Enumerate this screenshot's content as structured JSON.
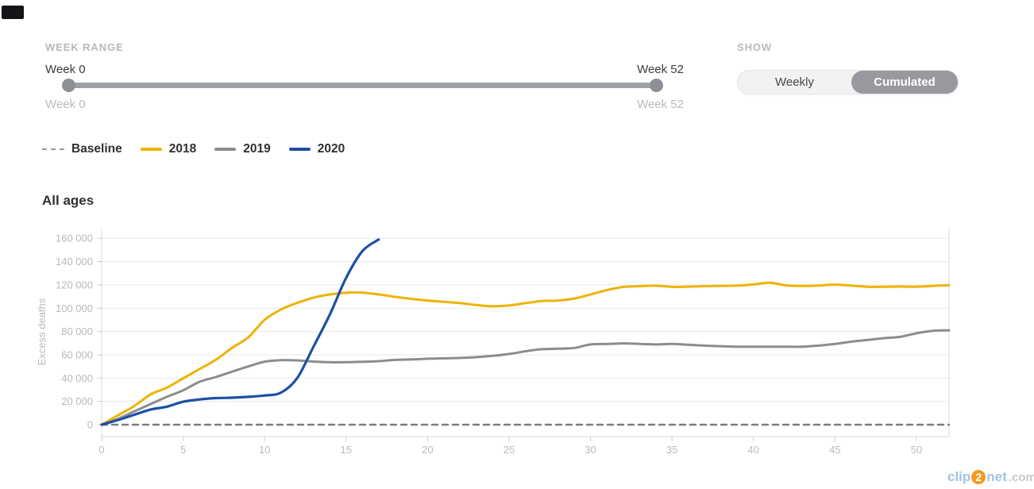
{
  "week_range": {
    "label": "WEEK RANGE",
    "start_label_top": "Week 0",
    "end_label_top": "Week 52",
    "start_label_bottom": "Week 0",
    "end_label_bottom": "Week 52",
    "slider_min": 0,
    "slider_max": 52
  },
  "show": {
    "label": "SHOW",
    "options": [
      {
        "label": "Weekly",
        "selected": false
      },
      {
        "label": "Cumulated",
        "selected": true
      }
    ]
  },
  "legend": [
    {
      "label": "Baseline",
      "style": "dashed",
      "color": "#97999b"
    },
    {
      "label": "2018",
      "style": "solid",
      "color": "#efb302"
    },
    {
      "label": "2019",
      "style": "solid",
      "color": "#8a8d90"
    },
    {
      "label": "2020",
      "style": "solid",
      "color": "#1e4fa5"
    }
  ],
  "chart_title": "All ages",
  "watermark": {
    "clip": "clip",
    "two": "2",
    "net": "net",
    "dotcom": ".com"
  },
  "chart_data": {
    "type": "line",
    "title": "All ages",
    "xlabel": "",
    "ylabel": "Excess deaths",
    "xlim": [
      0,
      52
    ],
    "ylim": [
      0,
      168000
    ],
    "grid": true,
    "legend_position": "top-left",
    "x_ticks": [
      0,
      5,
      10,
      15,
      20,
      25,
      30,
      35,
      40,
      45,
      50
    ],
    "y_ticks": [
      [
        0,
        "0"
      ],
      [
        20000,
        "20 000"
      ],
      [
        40000,
        "40 000"
      ],
      [
        60000,
        "60 000"
      ],
      [
        80000,
        "80 000"
      ],
      [
        100000,
        "100 000"
      ],
      [
        120000,
        "120 000"
      ],
      [
        140000,
        "140 000"
      ],
      [
        160000,
        "160 000"
      ]
    ],
    "series": [
      {
        "name": "Baseline",
        "color": "#7a7c7f",
        "dash": "7 6",
        "width": 2.5,
        "x": [
          0,
          52
        ],
        "values": [
          0,
          0
        ]
      },
      {
        "name": "2018",
        "color": "#efb302",
        "dash": null,
        "width": 3,
        "x": [
          0,
          1,
          2,
          3,
          4,
          5,
          6,
          7,
          8,
          9,
          10,
          11,
          12,
          13,
          14,
          15,
          16,
          17,
          18,
          19,
          20,
          21,
          22,
          23,
          24,
          25,
          26,
          27,
          28,
          29,
          30,
          31,
          32,
          33,
          34,
          35,
          36,
          37,
          38,
          39,
          40,
          41,
          42,
          43,
          44,
          45,
          46,
          47,
          48,
          49,
          50,
          51,
          52
        ],
        "values": [
          0,
          8000,
          16000,
          26000,
          31800,
          39800,
          47700,
          55700,
          65900,
          75000,
          90000,
          98900,
          104500,
          109100,
          111800,
          113300,
          113400,
          111800,
          109800,
          108000,
          106600,
          105500,
          104400,
          102700,
          101700,
          102400,
          104300,
          106200,
          106600,
          108300,
          111800,
          115500,
          118200,
          118900,
          119300,
          118300,
          118500,
          118900,
          119200,
          119400,
          120400,
          121900,
          119600,
          119100,
          119400,
          120300,
          119400,
          118400,
          118400,
          118600,
          118400,
          119200,
          119800
        ]
      },
      {
        "name": "2019",
        "color": "#8a8d90",
        "dash": null,
        "width": 3,
        "x": [
          0,
          1,
          2,
          3,
          4,
          5,
          6,
          7,
          8,
          9,
          10,
          11,
          12,
          13,
          14,
          15,
          16,
          17,
          18,
          19,
          20,
          21,
          22,
          23,
          24,
          25,
          26,
          27,
          28,
          29,
          30,
          31,
          32,
          33,
          34,
          35,
          36,
          37,
          38,
          39,
          40,
          41,
          42,
          43,
          44,
          45,
          46,
          47,
          48,
          49,
          50,
          51,
          52
        ],
        "values": [
          0,
          5000,
          11400,
          17700,
          23900,
          29500,
          36800,
          40900,
          45500,
          50000,
          54100,
          55400,
          55200,
          54200,
          53600,
          53600,
          54000,
          54500,
          55600,
          56000,
          56600,
          57000,
          57300,
          58000,
          59100,
          60700,
          63000,
          64800,
          65200,
          65900,
          68900,
          69300,
          69800,
          69400,
          68900,
          69300,
          68600,
          67900,
          67400,
          67000,
          67000,
          66900,
          66900,
          67000,
          67900,
          69300,
          71300,
          72700,
          74300,
          75400,
          78500,
          80600,
          81000
        ]
      },
      {
        "name": "2020",
        "color": "#1e4fa5",
        "dash": null,
        "width": 3.2,
        "x": [
          0,
          1,
          2,
          3,
          4,
          5,
          6,
          7,
          8,
          9,
          10,
          11,
          12,
          13,
          14,
          15,
          16,
          17
        ],
        "values": [
          0,
          4000,
          8500,
          13000,
          15500,
          19700,
          21700,
          22800,
          23200,
          23900,
          25100,
          27500,
          40000,
          67000,
          94500,
          126000,
          149000,
          159000
        ]
      }
    ]
  }
}
